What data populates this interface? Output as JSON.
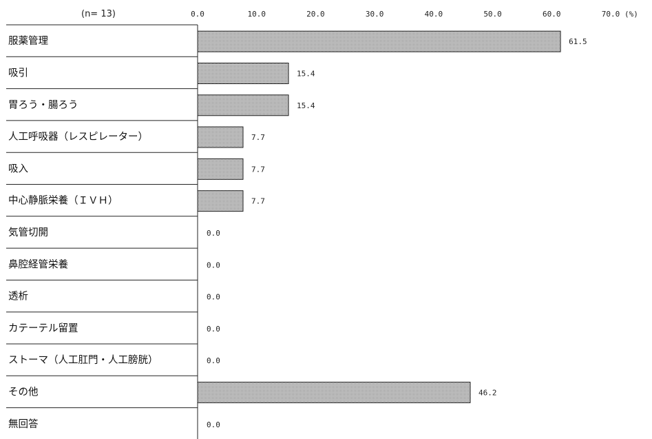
{
  "chart_data": {
    "type": "bar",
    "orientation": "horizontal",
    "sample_size_label": "(n=  13)",
    "unit_label": "(%)",
    "xlim": [
      0,
      70
    ],
    "ticks": [
      "0.0",
      "10.0",
      "20.0",
      "30.0",
      "40.0",
      "50.0",
      "60.0",
      "70.0"
    ],
    "tick_values": [
      0,
      10,
      20,
      30,
      40,
      50,
      60,
      70
    ],
    "categories": [
      "服薬管理",
      "吸引",
      "胃ろう・腸ろう",
      "人工呼吸器（レスピレーター）",
      "吸入",
      "中心静脈栄養（ＩＶＨ）",
      "気管切開",
      "鼻腔経管栄養",
      "透析",
      "カテーテル留置",
      "ストーマ（人工肛門・人工膀胱）",
      "その他",
      "無回答"
    ],
    "values": [
      61.5,
      15.4,
      15.4,
      7.7,
      7.7,
      7.7,
      0.0,
      0.0,
      0.0,
      0.0,
      0.0,
      46.2,
      0.0
    ],
    "value_labels": [
      "61.5",
      "15.4",
      "15.4",
      "7.7",
      "7.7",
      "7.7",
      "0.0",
      "0.0",
      "0.0",
      "0.0",
      "0.0",
      "46.2",
      "0.0"
    ],
    "bar_fill": "dotted-gray",
    "grid": false,
    "legend": "none"
  }
}
